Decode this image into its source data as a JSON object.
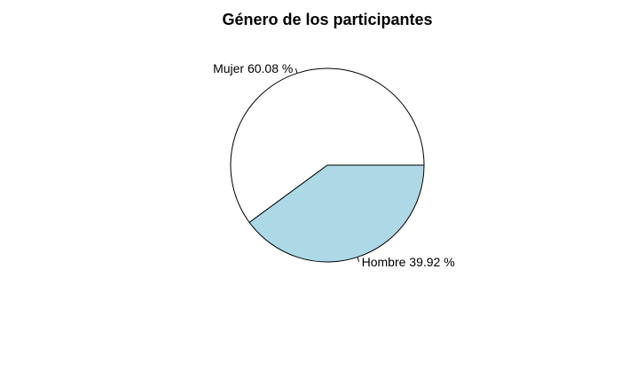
{
  "chart_data": {
    "type": "pie",
    "title": "Género de los participantes",
    "slices": [
      {
        "category": "Mujer",
        "value": 60.08,
        "label": "Mujer 60.08 %",
        "color": "#ffffff"
      },
      {
        "category": "Hombre",
        "value": 39.92,
        "label": "Hombre 39.92 %",
        "color": "#add8e6"
      }
    ],
    "start_angle": "0 degrees (3 o'clock)",
    "direction": "counterclockwise",
    "border_color": "#000000"
  }
}
